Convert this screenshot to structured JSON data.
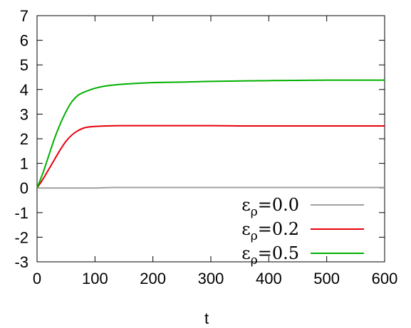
{
  "chart_data": {
    "type": "line",
    "title": "",
    "xlabel": "t",
    "ylabel": "",
    "xlim": [
      0,
      600
    ],
    "ylim": [
      -3,
      7
    ],
    "xticks": [
      0,
      100,
      200,
      300,
      400,
      500,
      600
    ],
    "yticks": [
      -3,
      -2,
      -1,
      0,
      1,
      2,
      3,
      4,
      5,
      6,
      7
    ],
    "grid": false,
    "legend_position": "bottom-right",
    "series": [
      {
        "name": "ε_ρ=0.0",
        "label_main": "ε",
        "label_sub": "ρ",
        "label_tail": "=0.0",
        "color": "#a0a0a0",
        "x": [
          0,
          50,
          100,
          135,
          200,
          300,
          400,
          500,
          600
        ],
        "y": [
          0,
          0,
          0,
          0.02,
          0.02,
          0.02,
          0.02,
          0.02,
          0.02
        ]
      },
      {
        "name": "ε_ρ=0.2",
        "label_main": "ε",
        "label_sub": "ρ",
        "label_tail": "=0.2",
        "color": "#e8000b",
        "x": [
          0,
          10,
          20,
          30,
          40,
          50,
          60,
          70,
          80,
          90,
          100,
          120,
          150,
          200,
          300,
          350,
          400,
          500,
          600
        ],
        "y": [
          0,
          0.35,
          0.75,
          1.15,
          1.55,
          1.9,
          2.15,
          2.32,
          2.43,
          2.48,
          2.5,
          2.52,
          2.53,
          2.53,
          2.53,
          2.52,
          2.52,
          2.52,
          2.52
        ]
      },
      {
        "name": "ε_ρ=0.5",
        "label_main": "ε",
        "label_sub": "ρ",
        "label_tail": "=0.5",
        "color": "#00b000",
        "x": [
          0,
          10,
          20,
          30,
          40,
          50,
          60,
          70,
          80,
          100,
          120,
          150,
          200,
          250,
          300,
          400,
          500,
          600
        ],
        "y": [
          0,
          0.6,
          1.3,
          2.0,
          2.6,
          3.1,
          3.5,
          3.75,
          3.88,
          4.05,
          4.15,
          4.22,
          4.28,
          4.3,
          4.33,
          4.36,
          4.38,
          4.38
        ]
      }
    ]
  }
}
